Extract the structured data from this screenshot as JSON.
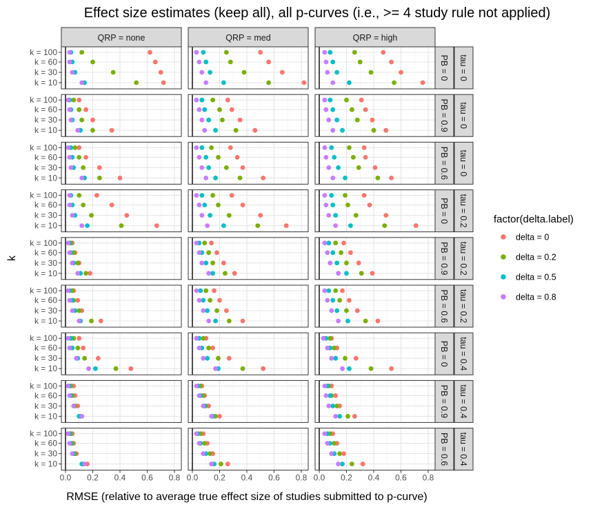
{
  "chart_data": {
    "type": "scatter",
    "title": "Effect size estimates (keep all), all p-curves (i.e., >= 4 study rule not applied)",
    "xlabel": "RMSE (relative to average true effect size of studies submitted to p-curve)",
    "ylabel": "k",
    "xlim": [
      0,
      0.8
    ],
    "x_ticks": [
      "0.0",
      "0.2",
      "0.4",
      "0.6",
      "0.8"
    ],
    "y_categories": [
      "k = 100",
      "k = 60",
      "k = 30",
      "k = 10"
    ],
    "vline_x": 0,
    "grid": true,
    "col_facets": [
      "QRP = none",
      "QRP = med",
      "QRP = high"
    ],
    "row_facets": [
      {
        "pb": "PB = 0",
        "tau": "tau = 0"
      },
      {
        "pb": "PB = 0.9",
        "tau": "tau = 0"
      },
      {
        "pb": "PB = 0.6",
        "tau": "tau = 0"
      },
      {
        "pb": "PB = 0",
        "tau": "tau = 0.2"
      },
      {
        "pb": "PB = 0.9",
        "tau": "tau = 0.2"
      },
      {
        "pb": "PB = 0.6",
        "tau": "tau = 0.2"
      },
      {
        "pb": "PB = 0",
        "tau": "tau = 0.4"
      },
      {
        "pb": "PB = 0.9",
        "tau": "tau = 0.4"
      },
      {
        "pb": "PB = 0.6",
        "tau": "tau = 0.4"
      }
    ],
    "legend": {
      "title": "factor(delta.label)",
      "position": "right",
      "entries": [
        {
          "label": "delta = 0",
          "color": "#F8766D"
        },
        {
          "label": "delta = 0.2",
          "color": "#7CAE00"
        },
        {
          "label": "delta = 0.5",
          "color": "#00BFC4"
        },
        {
          "label": "delta = 0.8",
          "color": "#C77CFF"
        }
      ]
    },
    "series_order_note_k": [
      100,
      60,
      30,
      10
    ],
    "panels": [
      [
        {
          "d0": [
            0.62,
            0.66,
            0.7,
            0.72
          ],
          "d02": [
            0.12,
            0.2,
            0.35,
            0.52
          ],
          "d05": [
            0.04,
            0.05,
            0.07,
            0.14
          ],
          "d08": [
            0.03,
            0.03,
            0.05,
            0.12
          ]
        },
        {
          "d0": [
            0.1,
            0.15,
            0.2,
            0.34
          ],
          "d02": [
            0.06,
            0.1,
            0.12,
            0.2
          ],
          "d05": [
            0.03,
            0.04,
            0.05,
            0.11
          ],
          "d08": [
            0.02,
            0.03,
            0.04,
            0.09
          ]
        },
        {
          "d0": [
            0.1,
            0.15,
            0.25,
            0.4
          ],
          "d02": [
            0.07,
            0.1,
            0.13,
            0.25
          ],
          "d05": [
            0.04,
            0.05,
            0.06,
            0.14
          ],
          "d08": [
            0.02,
            0.03,
            0.04,
            0.12
          ]
        },
        {
          "d0": [
            0.23,
            0.34,
            0.45,
            0.67
          ],
          "d02": [
            0.1,
            0.13,
            0.19,
            0.41
          ],
          "d05": [
            0.04,
            0.05,
            0.07,
            0.16
          ],
          "d08": [
            0.03,
            0.03,
            0.05,
            0.12
          ]
        },
        {
          "d0": [
            0.05,
            0.07,
            0.1,
            0.18
          ],
          "d02": [
            0.04,
            0.06,
            0.09,
            0.15
          ],
          "d05": [
            0.03,
            0.04,
            0.06,
            0.11
          ],
          "d08": [
            0.02,
            0.03,
            0.05,
            0.09
          ]
        },
        {
          "d0": [
            0.06,
            0.09,
            0.12,
            0.26
          ],
          "d02": [
            0.05,
            0.06,
            0.1,
            0.19
          ],
          "d05": [
            0.03,
            0.05,
            0.07,
            0.11
          ],
          "d08": [
            0.02,
            0.03,
            0.05,
            0.1
          ]
        },
        {
          "d0": [
            0.1,
            0.13,
            0.24,
            0.48
          ],
          "d02": [
            0.06,
            0.09,
            0.14,
            0.37
          ],
          "d05": [
            0.04,
            0.05,
            0.09,
            0.22
          ],
          "d08": [
            0.02,
            0.03,
            0.08,
            0.17
          ]
        },
        {
          "d0": [
            0.06,
            0.07,
            0.09,
            0.12
          ],
          "d02": [
            0.04,
            0.05,
            0.07,
            0.11
          ],
          "d05": [
            0.03,
            0.04,
            0.06,
            0.1
          ],
          "d08": [
            0.02,
            0.03,
            0.06,
            0.12
          ]
        },
        {
          "d0": [
            0.05,
            0.06,
            0.08,
            0.16
          ],
          "d02": [
            0.04,
            0.05,
            0.07,
            0.13
          ],
          "d05": [
            0.03,
            0.04,
            0.06,
            0.12
          ],
          "d08": [
            0.02,
            0.03,
            0.05,
            0.14
          ]
        }
      ],
      [
        {
          "d0": [
            0.5,
            0.56,
            0.66,
            0.82
          ],
          "d02": [
            0.25,
            0.28,
            0.38,
            0.56
          ],
          "d05": [
            0.08,
            0.1,
            0.13,
            0.23
          ],
          "d08": [
            0.03,
            0.05,
            0.07,
            0.1
          ]
        },
        {
          "d0": [
            0.26,
            0.29,
            0.35,
            0.46
          ],
          "d02": [
            0.15,
            0.2,
            0.22,
            0.32
          ],
          "d05": [
            0.07,
            0.09,
            0.12,
            0.17
          ],
          "d08": [
            0.03,
            0.05,
            0.07,
            0.09
          ]
        },
        {
          "d0": [
            0.28,
            0.33,
            0.37,
            0.52
          ],
          "d02": [
            0.14,
            0.19,
            0.25,
            0.35
          ],
          "d05": [
            0.07,
            0.1,
            0.12,
            0.17
          ],
          "d08": [
            0.03,
            0.05,
            0.07,
            0.1
          ]
        },
        {
          "d0": [
            0.29,
            0.37,
            0.5,
            0.69
          ],
          "d02": [
            0.15,
            0.19,
            0.27,
            0.48
          ],
          "d05": [
            0.07,
            0.09,
            0.13,
            0.23
          ],
          "d08": [
            0.03,
            0.05,
            0.07,
            0.11
          ]
        },
        {
          "d0": [
            0.14,
            0.18,
            0.23,
            0.31
          ],
          "d02": [
            0.09,
            0.12,
            0.15,
            0.24
          ],
          "d05": [
            0.05,
            0.07,
            0.1,
            0.15
          ],
          "d08": [
            0.03,
            0.05,
            0.07,
            0.12
          ]
        },
        {
          "d0": [
            0.16,
            0.2,
            0.25,
            0.37
          ],
          "d02": [
            0.1,
            0.13,
            0.18,
            0.27
          ],
          "d05": [
            0.06,
            0.08,
            0.11,
            0.17
          ],
          "d08": [
            0.03,
            0.05,
            0.08,
            0.12
          ]
        },
        {
          "d0": [
            0.1,
            0.15,
            0.27,
            0.52
          ],
          "d02": [
            0.08,
            0.12,
            0.19,
            0.37
          ],
          "d05": [
            0.05,
            0.07,
            0.11,
            0.19
          ],
          "d08": [
            0.03,
            0.05,
            0.08,
            0.17
          ]
        },
        {
          "d0": [
            0.07,
            0.09,
            0.12,
            0.2
          ],
          "d02": [
            0.06,
            0.08,
            0.1,
            0.17
          ],
          "d05": [
            0.04,
            0.06,
            0.09,
            0.15
          ],
          "d08": [
            0.03,
            0.05,
            0.08,
            0.14
          ]
        },
        {
          "d0": [
            0.08,
            0.11,
            0.15,
            0.26
          ],
          "d02": [
            0.06,
            0.09,
            0.13,
            0.21
          ],
          "d05": [
            0.04,
            0.06,
            0.1,
            0.16
          ],
          "d08": [
            0.03,
            0.05,
            0.08,
            0.14
          ]
        }
      ],
      [
        {
          "d0": [
            0.47,
            0.53,
            0.6,
            0.76
          ],
          "d02": [
            0.26,
            0.3,
            0.38,
            0.55
          ],
          "d05": [
            0.08,
            0.1,
            0.13,
            0.22
          ],
          "d08": [
            0.04,
            0.05,
            0.06,
            0.1
          ]
        },
        {
          "d0": [
            0.31,
            0.34,
            0.39,
            0.49
          ],
          "d02": [
            0.2,
            0.24,
            0.28,
            0.4
          ],
          "d05": [
            0.08,
            0.1,
            0.13,
            0.17
          ],
          "d08": [
            0.04,
            0.05,
            0.07,
            0.1
          ]
        },
        {
          "d0": [
            0.33,
            0.34,
            0.41,
            0.53
          ],
          "d02": [
            0.22,
            0.25,
            0.29,
            0.43
          ],
          "d05": [
            0.09,
            0.11,
            0.14,
            0.19
          ],
          "d08": [
            0.04,
            0.05,
            0.07,
            0.1
          ]
        },
        {
          "d0": [
            0.33,
            0.37,
            0.49,
            0.71
          ],
          "d02": [
            0.19,
            0.21,
            0.27,
            0.48
          ],
          "d05": [
            0.09,
            0.1,
            0.12,
            0.23
          ],
          "d08": [
            0.04,
            0.05,
            0.07,
            0.12
          ]
        },
        {
          "d0": [
            0.18,
            0.23,
            0.29,
            0.39
          ],
          "d02": [
            0.12,
            0.16,
            0.2,
            0.31
          ],
          "d05": [
            0.07,
            0.1,
            0.13,
            0.2
          ],
          "d08": [
            0.04,
            0.06,
            0.08,
            0.14
          ]
        },
        {
          "d0": [
            0.17,
            0.22,
            0.28,
            0.43
          ],
          "d02": [
            0.12,
            0.15,
            0.2,
            0.34
          ],
          "d05": [
            0.07,
            0.1,
            0.13,
            0.21
          ],
          "d08": [
            0.04,
            0.06,
            0.09,
            0.14
          ]
        },
        {
          "d0": [
            0.09,
            0.13,
            0.27,
            0.53
          ],
          "d02": [
            0.08,
            0.11,
            0.19,
            0.38
          ],
          "d05": [
            0.05,
            0.08,
            0.12,
            0.22
          ],
          "d08": [
            0.03,
            0.06,
            0.09,
            0.17
          ]
        },
        {
          "d0": [
            0.09,
            0.12,
            0.15,
            0.26
          ],
          "d02": [
            0.07,
            0.09,
            0.13,
            0.21
          ],
          "d05": [
            0.06,
            0.08,
            0.1,
            0.15
          ],
          "d08": [
            0.04,
            0.05,
            0.07,
            0.12
          ]
        },
        {
          "d0": [
            0.1,
            0.13,
            0.18,
            0.32
          ],
          "d02": [
            0.08,
            0.11,
            0.15,
            0.24
          ],
          "d05": [
            0.06,
            0.08,
            0.11,
            0.17
          ],
          "d08": [
            0.04,
            0.06,
            0.09,
            0.14
          ]
        }
      ]
    ]
  }
}
